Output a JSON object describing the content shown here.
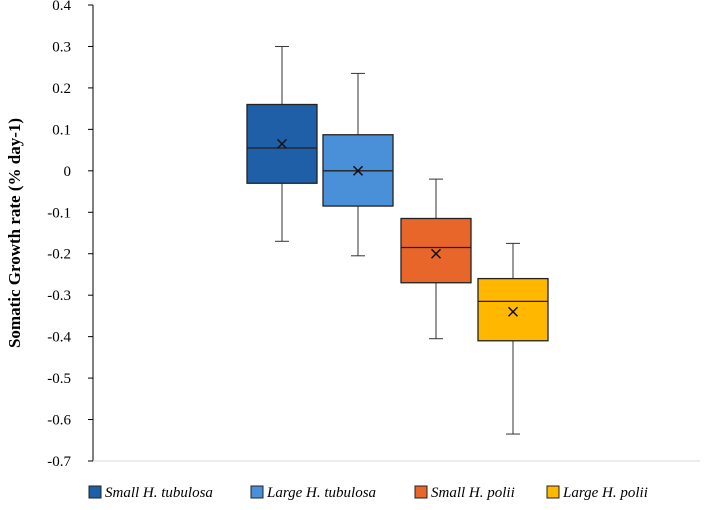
{
  "chart_data": {
    "type": "box",
    "ylabel": "Somatic Growth rate (% day-1)",
    "ylim": [
      -0.7,
      0.4
    ],
    "yticks": [
      0.4,
      0.3,
      0.2,
      0.1,
      0,
      -0.1,
      -0.2,
      -0.3,
      -0.4,
      -0.5,
      -0.6,
      -0.7
    ],
    "ytick_labels": [
      "0.4",
      "0.3",
      "0.2",
      "0.1",
      "0",
      "-0.1",
      "-0.2",
      "-0.3",
      "-0.4",
      "-0.5",
      "-0.6",
      "-0.7"
    ],
    "grid": false,
    "legend_position": "bottom",
    "series": [
      {
        "name": "Small H. tubulosa",
        "color": "#1f5fa8",
        "min": -0.17,
        "q1": -0.03,
        "median": 0.055,
        "q3": 0.16,
        "max": 0.3,
        "mean": 0.065
      },
      {
        "name": "Large H. tubulosa",
        "color": "#4a90d9",
        "min": -0.205,
        "q1": -0.085,
        "median": 0.0,
        "q3": 0.087,
        "max": 0.235,
        "mean": 0.0
      },
      {
        "name": "Small H. polii",
        "color": "#e8662a",
        "min": -0.405,
        "q1": -0.27,
        "median": -0.185,
        "q3": -0.115,
        "max": -0.02,
        "mean": -0.2
      },
      {
        "name": "Large H. polii",
        "color": "#ffb700",
        "min": -0.635,
        "q1": -0.41,
        "median": -0.315,
        "q3": -0.26,
        "max": -0.175,
        "mean": -0.34
      }
    ]
  }
}
